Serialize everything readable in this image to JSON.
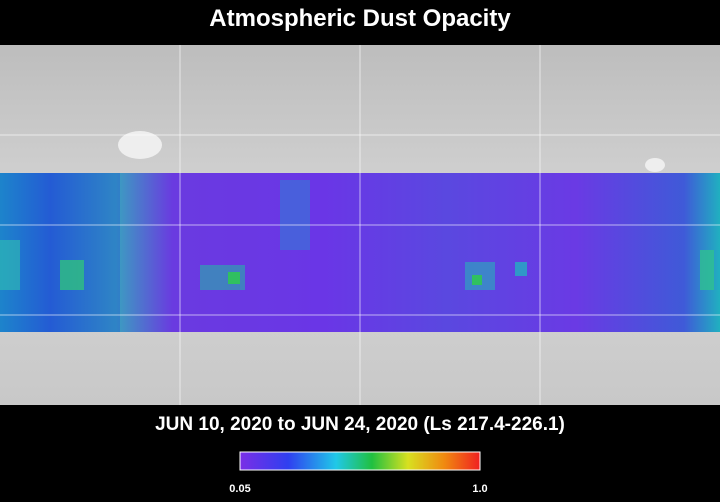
{
  "title": "Atmospheric Dust Opacity",
  "date_range": "JUN 10, 2020 to JUN 24, 2020 (Ls 217.4-226.1)",
  "colorbar": {
    "min_label": "0.05",
    "max_label": "1.0"
  }
}
